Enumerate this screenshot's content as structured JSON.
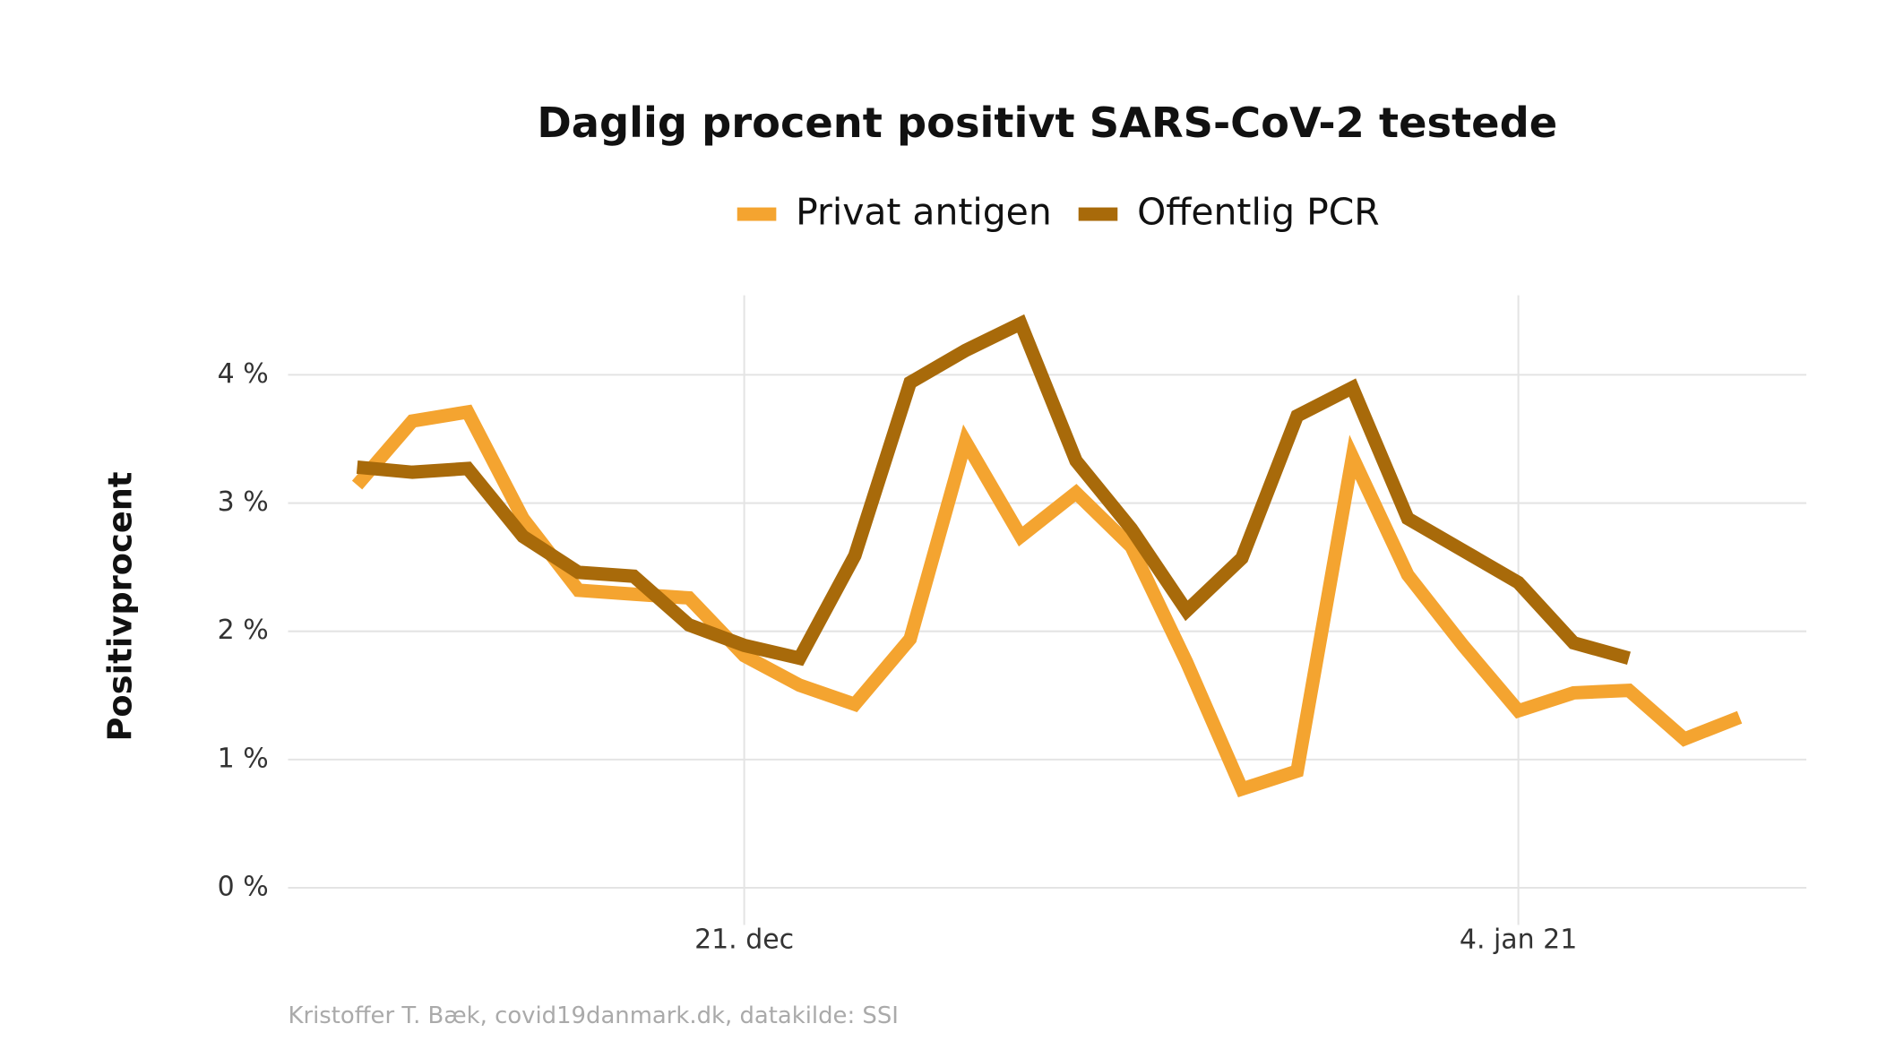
{
  "chart_data": {
    "type": "line",
    "title": "Daglig procent positivt SARS-CoV-2 testede",
    "ylabel": "Positivprocent",
    "caption": "Kristoffer T. Bæk, covid19danmark.dk, datakilde: SSI",
    "x": [
      "2020-12-14",
      "2020-12-15",
      "2020-12-16",
      "2020-12-17",
      "2020-12-18",
      "2020-12-19",
      "2020-12-20",
      "2020-12-21",
      "2020-12-22",
      "2020-12-23",
      "2020-12-24",
      "2020-12-25",
      "2020-12-26",
      "2020-12-27",
      "2020-12-28",
      "2020-12-29",
      "2020-12-30",
      "2020-12-31",
      "2021-01-01",
      "2021-01-02",
      "2021-01-03",
      "2021-01-04",
      "2021-01-05",
      "2021-01-06",
      "2021-01-07",
      "2021-01-08"
    ],
    "series": [
      {
        "name": "Privat antigen",
        "color": "#f4a430",
        "values": [
          3.14,
          3.64,
          3.71,
          2.88,
          2.32,
          2.29,
          2.26,
          1.81,
          1.58,
          1.43,
          1.94,
          3.48,
          2.74,
          3.08,
          2.66,
          1.76,
          0.77,
          0.91,
          3.36,
          2.44,
          1.89,
          1.38,
          1.52,
          1.54,
          1.16,
          1.33
        ]
      },
      {
        "name": "Offentlig PCR",
        "color": "#a86a0a",
        "values": [
          3.28,
          3.24,
          3.27,
          2.74,
          2.46,
          2.43,
          2.05,
          1.89,
          1.79,
          2.59,
          3.94,
          4.19,
          4.4,
          3.33,
          2.8,
          2.16,
          2.57,
          3.68,
          3.9,
          2.88,
          2.63,
          2.38,
          1.91,
          1.79,
          null,
          null
        ]
      }
    ],
    "xlim": [
      "2020-12-12T18:00",
      "2021-01-09T05:00"
    ],
    "xticks": [
      {
        "value": "2020-12-21",
        "label": "21. dec"
      },
      {
        "value": "2021-01-04",
        "label": "4. jan 21"
      }
    ],
    "ylim": [
      -0.29,
      4.62
    ],
    "yticks": [
      {
        "value": 0,
        "label": "0 %"
      },
      {
        "value": 1,
        "label": "1 %"
      },
      {
        "value": 2,
        "label": "2 %"
      },
      {
        "value": 3,
        "label": "3 %"
      },
      {
        "value": 4,
        "label": "4 %"
      }
    ],
    "grid": true,
    "legend": "top"
  }
}
